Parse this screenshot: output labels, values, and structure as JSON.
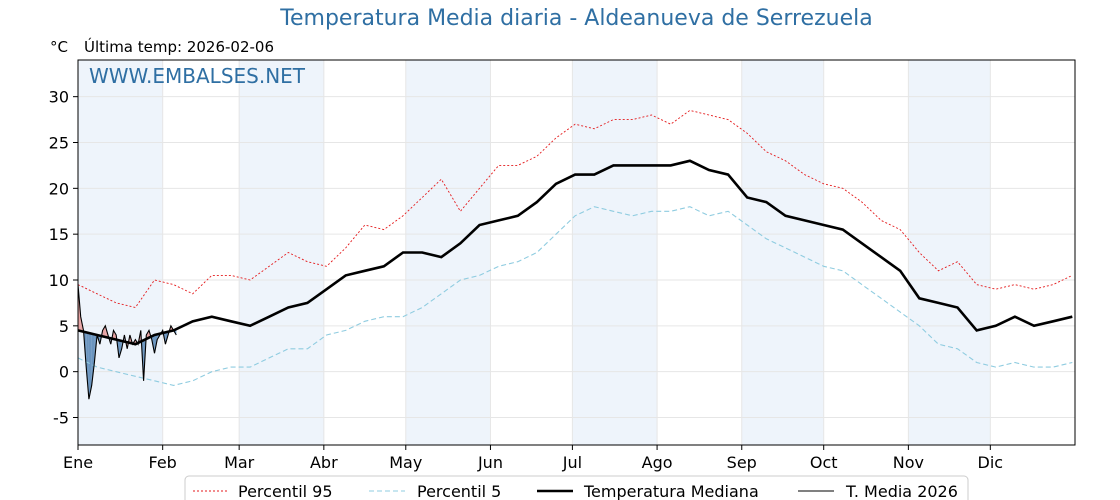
{
  "header": {
    "title": "Temperatura Media diaria - Aldeanueva de Serrezuela",
    "unit": "°C",
    "last_temp": "Última temp: 2026-02-06",
    "watermark": "WWW.EMBALSES.NET"
  },
  "colors": {
    "title": "#2f6fa3",
    "p95": "#e41a1c",
    "p5": "#8fcce0",
    "median": "#000000",
    "current": "#000000",
    "above_fill": "#e7a3a3",
    "below_fill": "#6b95bf",
    "month_band": "#eef4fb"
  },
  "chart_data": {
    "type": "line",
    "xlabel": "",
    "ylabel": "°C",
    "ylim": [
      -8,
      34
    ],
    "yticks": [
      -5,
      0,
      5,
      10,
      15,
      20,
      25,
      30
    ],
    "x_range": [
      1,
      366
    ],
    "x_ticks": [
      {
        "day": 1,
        "label": "Ene"
      },
      {
        "day": 32,
        "label": "Feb"
      },
      {
        "day": 60,
        "label": "Mar"
      },
      {
        "day": 91,
        "label": "Abr"
      },
      {
        "day": 121,
        "label": "May"
      },
      {
        "day": 152,
        "label": "Jun"
      },
      {
        "day": 182,
        "label": "Jul"
      },
      {
        "day": 213,
        "label": "Ago"
      },
      {
        "day": 244,
        "label": "Sep"
      },
      {
        "day": 274,
        "label": "Oct"
      },
      {
        "day": 305,
        "label": "Nov"
      },
      {
        "day": 335,
        "label": "Dic"
      }
    ],
    "grid": true,
    "legend_position": "bottom",
    "series": [
      {
        "name": "Percentil 95",
        "style": "dotted",
        "x": [
          1,
          8,
          15,
          22,
          29,
          36,
          43,
          50,
          57,
          64,
          71,
          78,
          85,
          92,
          99,
          106,
          113,
          120,
          127,
          134,
          141,
          148,
          155,
          162,
          169,
          176,
          183,
          190,
          197,
          204,
          211,
          218,
          225,
          232,
          239,
          246,
          253,
          260,
          267,
          274,
          281,
          288,
          295,
          302,
          309,
          316,
          323,
          330,
          337,
          344,
          351,
          358,
          365
        ],
        "values": [
          9.5,
          8.5,
          7.5,
          7.0,
          10.0,
          9.5,
          8.5,
          10.5,
          10.5,
          10.0,
          11.5,
          13.0,
          12.0,
          11.5,
          13.5,
          16.0,
          15.5,
          17.0,
          19.0,
          21.0,
          17.5,
          20.0,
          22.5,
          22.5,
          23.5,
          25.5,
          27.0,
          26.5,
          27.5,
          27.5,
          28.0,
          27.0,
          28.5,
          28.0,
          27.5,
          26.0,
          24.0,
          23.0,
          21.5,
          20.5,
          20.0,
          18.5,
          16.5,
          15.5,
          13.0,
          11.0,
          12.0,
          9.5,
          9.0,
          9.5,
          9.0,
          9.5,
          10.5
        ]
      },
      {
        "name": "Percentil 5",
        "style": "dashed",
        "x": [
          1,
          8,
          15,
          22,
          29,
          36,
          43,
          50,
          57,
          64,
          71,
          78,
          85,
          92,
          99,
          106,
          113,
          120,
          127,
          134,
          141,
          148,
          155,
          162,
          169,
          176,
          183,
          190,
          197,
          204,
          211,
          218,
          225,
          232,
          239,
          246,
          253,
          260,
          267,
          274,
          281,
          288,
          295,
          302,
          309,
          316,
          323,
          330,
          337,
          344,
          351,
          358,
          365
        ],
        "values": [
          1.5,
          0.5,
          0.0,
          -0.5,
          -1.0,
          -1.5,
          -1.0,
          0.0,
          0.5,
          0.5,
          1.5,
          2.5,
          2.5,
          4.0,
          4.5,
          5.5,
          6.0,
          6.0,
          7.0,
          8.5,
          10.0,
          10.5,
          11.5,
          12.0,
          13.0,
          15.0,
          17.0,
          18.0,
          17.5,
          17.0,
          17.5,
          17.5,
          18.0,
          17.0,
          17.5,
          16.0,
          14.5,
          13.5,
          12.5,
          11.5,
          11.0,
          9.5,
          8.0,
          6.5,
          5.0,
          3.0,
          2.5,
          1.0,
          0.5,
          1.0,
          0.5,
          0.5,
          1.0
        ]
      },
      {
        "name": "Temperatura Mediana",
        "style": "thick",
        "x": [
          1,
          8,
          15,
          22,
          29,
          36,
          43,
          50,
          57,
          64,
          71,
          78,
          85,
          92,
          99,
          106,
          113,
          120,
          127,
          134,
          141,
          148,
          155,
          162,
          169,
          176,
          183,
          190,
          197,
          204,
          211,
          218,
          225,
          232,
          239,
          246,
          253,
          260,
          267,
          274,
          281,
          288,
          295,
          302,
          309,
          316,
          323,
          330,
          337,
          344,
          351,
          358,
          365
        ],
        "values": [
          4.5,
          4.0,
          3.5,
          3.0,
          4.0,
          4.5,
          5.5,
          6.0,
          5.5,
          5.0,
          6.0,
          7.0,
          7.5,
          9.0,
          10.5,
          11.0,
          11.5,
          13.0,
          13.0,
          12.5,
          14.0,
          16.0,
          16.5,
          17.0,
          18.5,
          20.5,
          21.5,
          21.5,
          22.5,
          22.5,
          22.5,
          22.5,
          23.0,
          22.0,
          21.5,
          19.0,
          18.5,
          17.0,
          16.5,
          16.0,
          15.5,
          14.0,
          12.5,
          11.0,
          8.0,
          7.5,
          7.0,
          4.5,
          5.0,
          6.0,
          5.0,
          5.5,
          6.0
        ]
      },
      {
        "name": "T. Media 2026",
        "style": "thin",
        "x": [
          1,
          2,
          3,
          4,
          5,
          6,
          7,
          8,
          9,
          10,
          11,
          12,
          13,
          14,
          15,
          16,
          17,
          18,
          19,
          20,
          21,
          22,
          23,
          24,
          25,
          26,
          27,
          28,
          29,
          30,
          31,
          32,
          33,
          34,
          35,
          36,
          37
        ],
        "values": [
          9.5,
          6.0,
          4.5,
          0.5,
          -3.0,
          -1.5,
          1.0,
          4.0,
          3.0,
          4.5,
          5.0,
          4.0,
          3.0,
          4.5,
          4.0,
          1.5,
          2.5,
          4.0,
          2.5,
          4.0,
          3.0,
          3.5,
          3.0,
          4.5,
          -1.0,
          4.0,
          4.5,
          3.5,
          2.0,
          3.5,
          4.0,
          4.5,
          3.0,
          4.0,
          5.0,
          4.5,
          4.0
        ]
      }
    ]
  }
}
